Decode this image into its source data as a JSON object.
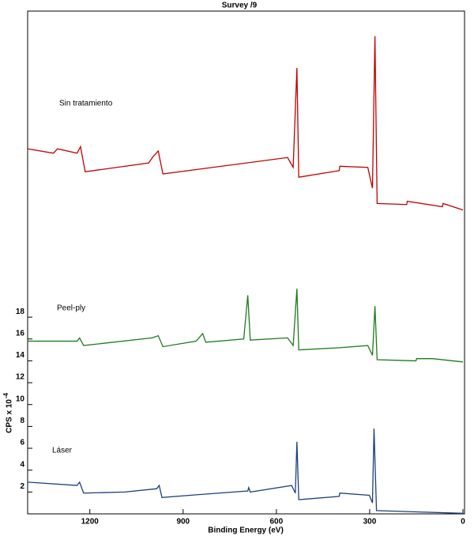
{
  "chart_data": {
    "type": "line",
    "title": "Survey /9",
    "x_label": "Binding Energy (eV)",
    "y_label": "CPS x 10",
    "y_label_exponent": "-4",
    "xlim": [
      1400,
      0
    ],
    "xticks": [
      1200,
      900,
      600,
      300,
      0
    ],
    "ylim": [
      0,
      46
    ],
    "yticks": [
      2,
      4,
      6,
      8,
      10,
      12,
      14,
      16,
      18
    ],
    "series": [
      {
        "name": "Sin tratamiento",
        "color": "#c00000",
        "x": [
          1400,
          1317,
          1304,
          1241,
          1230,
          1215,
          1011,
          996,
          980,
          965,
          564,
          546,
          534,
          528,
          398,
          396,
          306,
          291,
          283,
          276,
          181,
          179,
          66,
          64,
          0
        ],
        "values": [
          33.4,
          33.0,
          33.4,
          33.0,
          33.6,
          31.3,
          32.1,
          32.7,
          33.2,
          31.1,
          32.6,
          31.7,
          40.8,
          30.8,
          31.4,
          31.8,
          31.7,
          29.8,
          43.7,
          28.4,
          28.3,
          28.6,
          28.1,
          28.4,
          27.8
        ]
      },
      {
        "name": "Peel-ply",
        "color": "#1e7a1e",
        "x": [
          1400,
          1241,
          1233,
          1220,
          1000,
          980,
          965,
          858,
          837,
          827,
          705,
          692,
          684,
          564,
          546,
          534,
          528,
          398,
          306,
          291,
          283,
          276,
          151,
          149,
          97,
          0
        ],
        "values": [
          15.8,
          15.8,
          16.1,
          15.4,
          16.1,
          16.3,
          15.3,
          15.8,
          16.5,
          15.7,
          16.0,
          20.0,
          15.9,
          16.1,
          15.4,
          20.6,
          15.0,
          15.2,
          15.4,
          14.5,
          19.0,
          14.1,
          14.0,
          14.2,
          14.2,
          13.9
        ]
      },
      {
        "name": "Láser",
        "color": "#1f3f7a",
        "x": [
          1400,
          1241,
          1233,
          1220,
          1088,
          985,
          977,
          968,
          832,
          692,
          689,
          684,
          551,
          539,
          534,
          528,
          398,
          396,
          301,
          291,
          286,
          278,
          169,
          0
        ],
        "values": [
          2.9,
          2.6,
          2.9,
          1.9,
          2.0,
          2.3,
          2.6,
          1.5,
          1.8,
          2.1,
          2.4,
          2.0,
          2.6,
          1.9,
          6.6,
          1.3,
          1.6,
          1.9,
          1.7,
          1.0,
          7.8,
          0.3,
          0.2,
          0.05
        ]
      }
    ]
  }
}
